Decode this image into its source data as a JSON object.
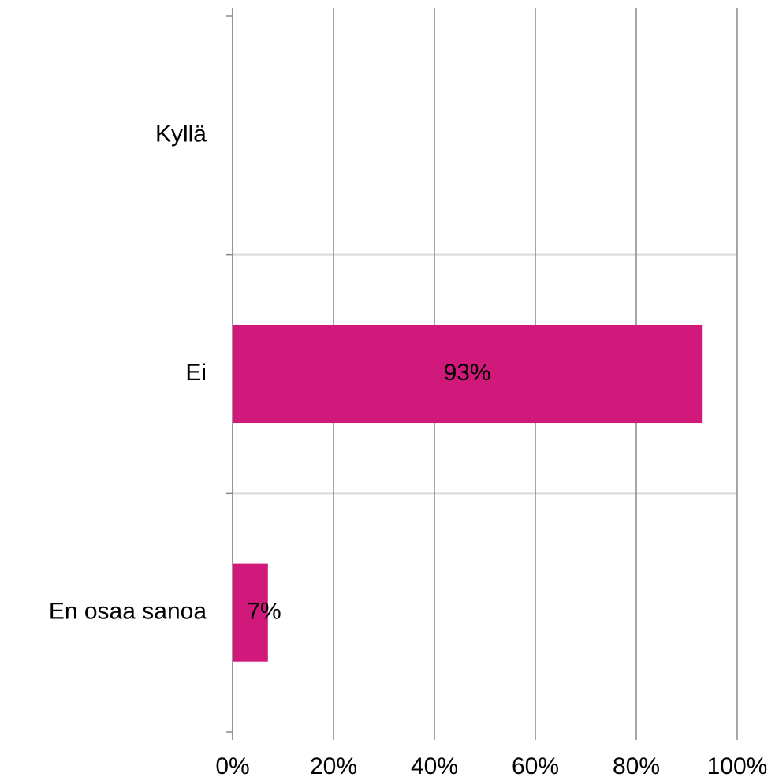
{
  "chart_data": {
    "type": "bar",
    "orientation": "horizontal",
    "categories": [
      "Kyllä",
      "Ei",
      "En osaa sanoa"
    ],
    "values": [
      0,
      93,
      7
    ],
    "value_labels": [
      null,
      "93%",
      "7%"
    ],
    "color": "#d0197a",
    "xlim": [
      0,
      100
    ],
    "xticks": [
      {
        "value": 0,
        "label": "0%"
      },
      {
        "value": 20,
        "label": "20%"
      },
      {
        "value": 40,
        "label": "40%"
      },
      {
        "value": 60,
        "label": "60%"
      },
      {
        "value": 80,
        "label": "80%"
      },
      {
        "value": 100,
        "label": "100%"
      }
    ],
    "grid": true
  }
}
